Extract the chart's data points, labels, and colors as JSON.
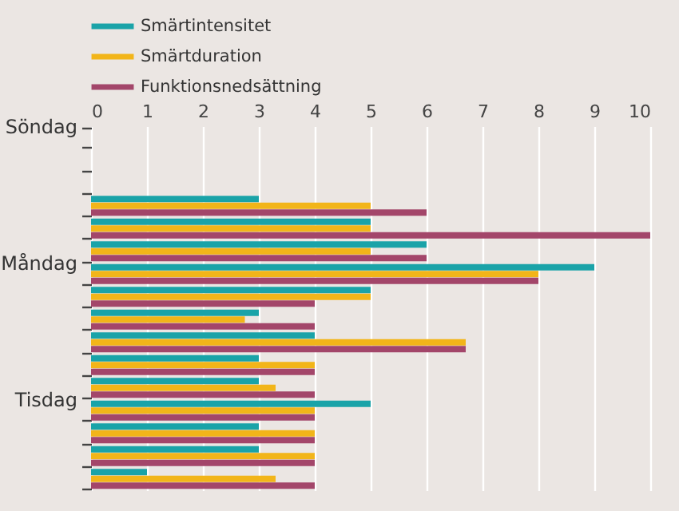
{
  "chart_data": {
    "type": "bar",
    "orientation": "horizontal",
    "categories": [
      "Söndag",
      null,
      null,
      null,
      null,
      null,
      "Måndag",
      null,
      null,
      null,
      null,
      null,
      "Tisdag",
      null,
      null,
      null
    ],
    "series": [
      {
        "name": "Smärtintensitet",
        "color": "#1aa3a8",
        "values": [
          null,
          null,
          null,
          3,
          5,
          6,
          9,
          5,
          3,
          4,
          3,
          3,
          5,
          3,
          3,
          1
        ]
      },
      {
        "name": "Smärtduration",
        "color": "#f2b519",
        "values": [
          null,
          null,
          null,
          5,
          5,
          5,
          8,
          5,
          2.75,
          6.7,
          4,
          3.3,
          4,
          4,
          4,
          3.3
        ]
      },
      {
        "name": "Funktionsnedsättning",
        "color": "#a3466a",
        "values": [
          null,
          null,
          null,
          6,
          10,
          6,
          8,
          4,
          4,
          6.7,
          4,
          4,
          4,
          4,
          4,
          4
        ]
      }
    ],
    "xlim": [
      0,
      10
    ],
    "xticks": [
      0,
      1,
      2,
      3,
      4,
      5,
      6,
      7,
      8,
      9,
      10
    ],
    "grid": "x",
    "legend": "top left"
  }
}
